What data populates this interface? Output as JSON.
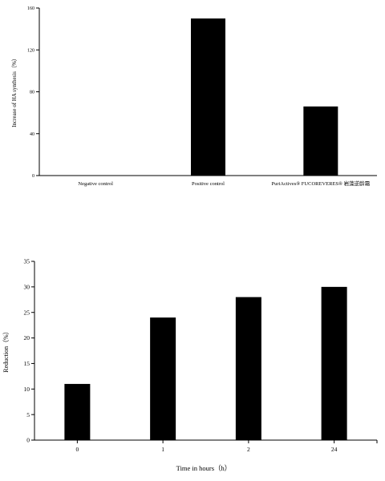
{
  "chart_data": [
    {
      "type": "bar",
      "categories": [
        "Negative control",
        "Positive control",
        "PuriActives® FUCOREVERES® 岩藻逆龄霜"
      ],
      "values": [
        0,
        150,
        66
      ],
      "ylabel": "Increase of HA synthesis（%）",
      "xlabel": "",
      "ylim": [
        0,
        160
      ],
      "yticks": [
        0,
        40,
        80,
        120,
        160
      ],
      "grid": false,
      "bar_color": "#000000"
    },
    {
      "type": "bar",
      "categories": [
        "0",
        "1",
        "2",
        "24"
      ],
      "values": [
        11,
        24,
        28,
        30
      ],
      "ylabel": "Reduction（%）",
      "xlabel": "Time in hours（h）",
      "ylim": [
        0,
        35
      ],
      "yticks": [
        0,
        5,
        10,
        15,
        20,
        25,
        30,
        35
      ],
      "grid": false,
      "bar_color": "#000000"
    }
  ]
}
